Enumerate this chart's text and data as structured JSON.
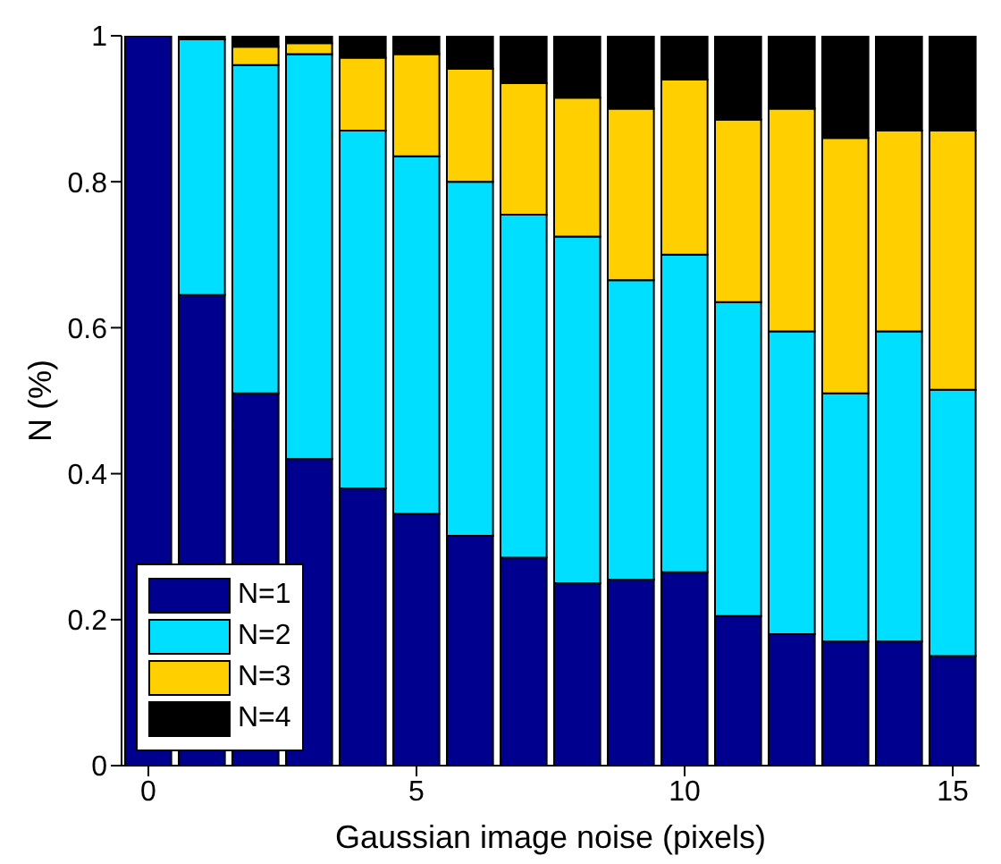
{
  "chart_data": {
    "type": "bar",
    "xlabel": "Gaussian image noise (pixels)",
    "ylabel": "N (%)",
    "x": [
      0,
      1,
      2,
      3,
      4,
      5,
      6,
      7,
      8,
      9,
      10,
      11,
      12,
      13,
      14,
      15
    ],
    "stacked": true,
    "series": [
      {
        "name": "N=1",
        "color": "#00008f",
        "values": [
          1,
          0.645,
          0.51,
          0.42,
          0.38,
          0.345,
          0.315,
          0.285,
          0.25,
          0.255,
          0.265,
          0.205,
          0.18,
          0.17,
          0.17,
          0.15
        ]
      },
      {
        "name": "N=2",
        "color": "#00dfff",
        "values": [
          0,
          0.35,
          0.45,
          0.555,
          0.49,
          0.49,
          0.485,
          0.47,
          0.475,
          0.41,
          0.435,
          0.43,
          0.415,
          0.34,
          0.425,
          0.365
        ]
      },
      {
        "name": "N=3",
        "color": "#ffcf00",
        "values": [
          0,
          0,
          0.025,
          0.015,
          0.1,
          0.14,
          0.155,
          0.18,
          0.19,
          0.235,
          0.24,
          0.25,
          0.305,
          0.35,
          0.275,
          0.355
        ]
      },
      {
        "name": "N=4",
        "color": "#000000",
        "values": [
          0,
          0.005,
          0.015,
          0.01,
          0.03,
          0.025,
          0.045,
          0.065,
          0.085,
          0.1,
          0.06,
          0.115,
          0.1,
          0.14,
          0.13,
          0.13
        ]
      }
    ],
    "xlim": [
      -0.5,
      15.5
    ],
    "xticks": [
      0,
      5,
      10,
      15
    ],
    "ylim": [
      0,
      1
    ],
    "yticks": [
      0,
      0.2,
      0.4,
      0.6,
      0.8,
      1
    ],
    "legend": "bottom left",
    "grid": false
  }
}
